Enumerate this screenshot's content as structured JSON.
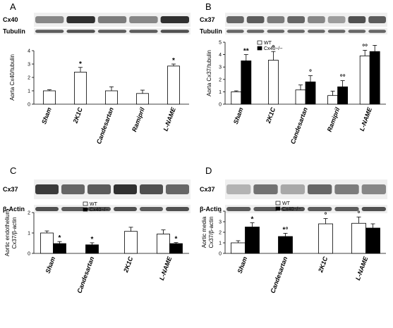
{
  "chart_data": [
    {
      "panel": "A",
      "type": "bar",
      "blot_labels": [
        "Cx40",
        "Tubulin"
      ],
      "ylabel": [
        "Aorta Cx40/tubulin"
      ],
      "ylim": [
        0,
        4
      ],
      "yticks": [
        "0",
        "1",
        "2",
        "3",
        "4"
      ],
      "categories": [
        "Sham",
        "2K1C",
        "Candesartan",
        "Ramipril",
        "L-NAME"
      ],
      "series": [
        {
          "values": [
            1.0,
            2.4,
            1.0,
            0.8,
            2.85
          ],
          "errors": [
            0.08,
            0.35,
            0.3,
            0.25,
            0.15
          ],
          "marks": [
            "",
            "*",
            "",
            "",
            "*"
          ],
          "color": "#ffffff"
        }
      ],
      "legend": []
    },
    {
      "panel": "B",
      "type": "bar",
      "blot_labels": [
        "Cx37",
        "Tubulin"
      ],
      "ylabel": [
        "Aorta Cx37/tubulin"
      ],
      "ylim": [
        0,
        5
      ],
      "yticks": [
        "0",
        "1",
        "2",
        "3",
        "4",
        "5"
      ],
      "categories": [
        "Sham",
        "2K1C",
        "Candesartan",
        "Ramipril",
        "L-NAME"
      ],
      "series": [
        {
          "name": "WT",
          "color": "#ffffff",
          "values": [
            1.0,
            3.55,
            1.15,
            0.7,
            3.9
          ],
          "errors": [
            0.08,
            0.7,
            0.4,
            0.35,
            0.45
          ],
          "marks": [
            "",
            "°",
            "",
            "",
            "°°"
          ]
        },
        {
          "name": "Cx40−/−",
          "color": "#000000",
          "values": [
            3.5,
            null,
            1.8,
            1.4,
            4.25
          ],
          "errors": [
            0.5,
            0,
            0.5,
            0.5,
            0.5
          ],
          "marks": [
            "**",
            "",
            "°",
            "°°",
            ""
          ]
        }
      ],
      "legend": [
        "WT",
        "Cx40−/−"
      ]
    },
    {
      "panel": "C",
      "type": "bar",
      "blot_labels": [
        "Cx37",
        "β-Actin"
      ],
      "ylabel": [
        "Aortic endothelium",
        "Cx37/β-actin"
      ],
      "ylim": [
        0,
        2
      ],
      "yticks": [
        "0",
        "1",
        "2"
      ],
      "categories": [
        "Sham",
        "Candesartan",
        "2K1C",
        "L-NAME"
      ],
      "series": [
        {
          "name": "WT",
          "color": "#ffffff",
          "values": [
            1.0,
            null,
            1.08,
            0.95
          ],
          "errors": [
            0.1,
            0,
            0.2,
            0.2
          ],
          "marks": [
            "",
            "",
            "",
            ""
          ]
        },
        {
          "name": "Cx40−/−",
          "color": "#000000",
          "values": [
            0.48,
            0.42,
            null,
            0.48
          ],
          "errors": [
            0.1,
            0.1,
            0,
            0.05
          ],
          "marks": [
            "*",
            "*",
            "",
            "*"
          ]
        }
      ],
      "legend": [
        "WT",
        "Cx40−/−"
      ]
    },
    {
      "panel": "D",
      "type": "bar",
      "blot_labels": [
        "Cx37",
        "β-Actin"
      ],
      "ylabel": [
        "Aortic media",
        "Cx37/β-actin"
      ],
      "ylim": [
        0,
        4
      ],
      "yticks": [
        "0",
        "1",
        "2",
        "3",
        "4"
      ],
      "categories": [
        "Sham",
        "Candesartan",
        "2K1C",
        "L-NAME"
      ],
      "series": [
        {
          "name": "WT",
          "color": "#ffffff",
          "values": [
            1.0,
            null,
            2.8,
            2.85
          ],
          "errors": [
            0.2,
            0,
            0.5,
            0.6
          ],
          "marks": [
            "",
            "",
            "°",
            "°"
          ]
        },
        {
          "name": "Cx40−/−",
          "color": "#000000",
          "values": [
            2.5,
            1.6,
            null,
            2.4
          ],
          "errors": [
            0.4,
            0.3,
            0,
            0.4
          ],
          "marks": [
            "*",
            "*°",
            "",
            ""
          ]
        }
      ],
      "legend": [
        "WT",
        "Cx40−/−"
      ]
    }
  ]
}
